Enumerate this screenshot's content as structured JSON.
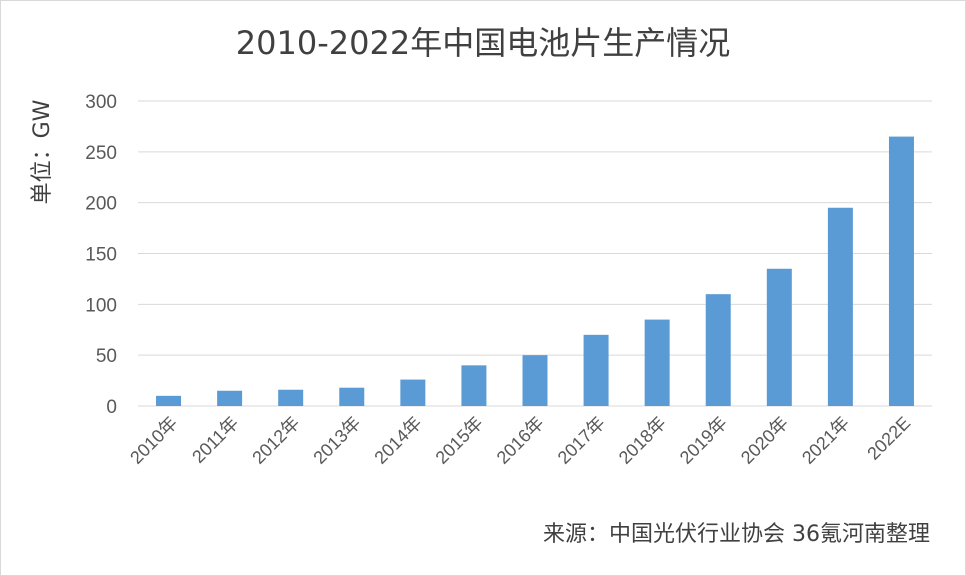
{
  "chart_data": {
    "type": "bar",
    "title": "2010-2022年中国电池片生产情况",
    "ylabel": "单位：GW",
    "xlabel": "",
    "source": "来源：中国光伏行业协会 36氪河南整理",
    "categories": [
      "2010年",
      "2011年",
      "2012年",
      "2013年",
      "2014年",
      "2015年",
      "2016年",
      "2017年",
      "2018年",
      "2019年",
      "2020年",
      "2021年",
      "2022E"
    ],
    "values": [
      10,
      15,
      16,
      18,
      26,
      40,
      50,
      70,
      85,
      110,
      135,
      195,
      265
    ],
    "ylim": [
      0,
      300
    ],
    "yticks": [
      0,
      50,
      100,
      150,
      200,
      250,
      300
    ],
    "grid": true,
    "legend": "none",
    "bar_color": "#5b9bd5",
    "grid_color": "#d9d9d9"
  }
}
